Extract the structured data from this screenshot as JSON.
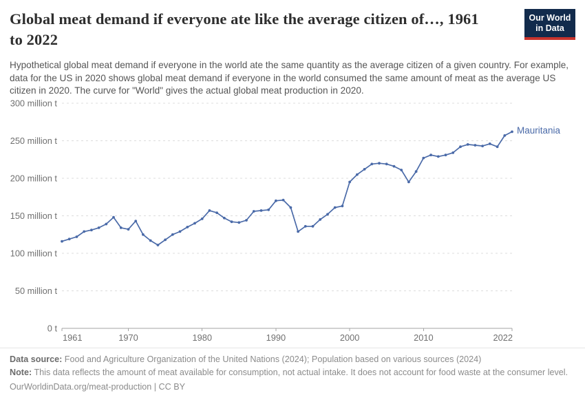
{
  "header": {
    "title_line1": "Global meat demand if everyone ate like the average citizen of…, 1961",
    "title_line2": "to 2022",
    "subtitle": "Hypothetical global meat demand if everyone in the world ate the same quantity as the average citizen of a given country. For example, data for the US in 2020 shows global meat demand if everyone in the world consumed the same amount of meat as the average US citizen in 2020. The curve for \"World\" gives the actual global meat production in 2020.",
    "logo": {
      "line1": "Our World",
      "line2": "in Data",
      "navy": "#122B4C",
      "red": "#C8342D"
    }
  },
  "chart_data": {
    "type": "line",
    "title": "Global meat demand if everyone ate like the average citizen of…, 1961 to 2022",
    "xlabel": "",
    "ylabel": "",
    "unit": "million t",
    "xlim": [
      1961,
      2022
    ],
    "ylim": [
      0,
      300
    ],
    "grid": "dashed horizontal",
    "legend_position": "end-of-line label",
    "x_ticks": [
      1961,
      1970,
      1980,
      1990,
      2000,
      2010,
      2022
    ],
    "y_ticks": [
      {
        "value": 0,
        "label": "0 t"
      },
      {
        "value": 50,
        "label": "50 million t"
      },
      {
        "value": 100,
        "label": "100 million t"
      },
      {
        "value": 150,
        "label": "150 million t"
      },
      {
        "value": 200,
        "label": "200 million t"
      },
      {
        "value": 250,
        "label": "250 million t"
      },
      {
        "value": 300,
        "label": "300 million t"
      }
    ],
    "series": [
      {
        "name": "Mauritania",
        "color": "#4A6AA8",
        "points": [
          [
            1961,
            116
          ],
          [
            1962,
            119
          ],
          [
            1963,
            122
          ],
          [
            1964,
            129
          ],
          [
            1965,
            131
          ],
          [
            1966,
            134
          ],
          [
            1967,
            139
          ],
          [
            1968,
            148
          ],
          [
            1969,
            134
          ],
          [
            1970,
            132
          ],
          [
            1971,
            143
          ],
          [
            1972,
            125
          ],
          [
            1973,
            117
          ],
          [
            1974,
            111
          ],
          [
            1975,
            118
          ],
          [
            1976,
            125
          ],
          [
            1977,
            129
          ],
          [
            1978,
            135
          ],
          [
            1979,
            140
          ],
          [
            1980,
            146
          ],
          [
            1981,
            157
          ],
          [
            1982,
            154
          ],
          [
            1983,
            147
          ],
          [
            1984,
            142
          ],
          [
            1985,
            141
          ],
          [
            1986,
            144
          ],
          [
            1987,
            156
          ],
          [
            1988,
            157
          ],
          [
            1989,
            158
          ],
          [
            1990,
            170
          ],
          [
            1991,
            171
          ],
          [
            1992,
            161
          ],
          [
            1993,
            129
          ],
          [
            1994,
            136
          ],
          [
            1995,
            136
          ],
          [
            1996,
            145
          ],
          [
            1997,
            152
          ],
          [
            1998,
            161
          ],
          [
            1999,
            163
          ],
          [
            2000,
            195
          ],
          [
            2001,
            205
          ],
          [
            2002,
            212
          ],
          [
            2003,
            219
          ],
          [
            2004,
            220
          ],
          [
            2005,
            219
          ],
          [
            2006,
            216
          ],
          [
            2007,
            211
          ],
          [
            2008,
            195
          ],
          [
            2009,
            209
          ],
          [
            2010,
            227
          ],
          [
            2011,
            231
          ],
          [
            2012,
            229
          ],
          [
            2013,
            231
          ],
          [
            2014,
            234
          ],
          [
            2015,
            242
          ],
          [
            2016,
            245
          ],
          [
            2017,
            244
          ],
          [
            2018,
            243
          ],
          [
            2019,
            246
          ],
          [
            2020,
            242
          ],
          [
            2021,
            257
          ],
          [
            2022,
            262
          ]
        ]
      }
    ]
  },
  "footer": {
    "data_source_label": "Data source:",
    "data_source_text": " Food and Agriculture Organization of the United Nations (2024); Population based on various sources (2024)",
    "note_label": "Note:",
    "note_text": " This data reflects the amount of meat available for consumption, not actual intake. It does not account for food waste at the consumer level.",
    "citation_link": "OurWorldinData.org/meat-production",
    "citation_separator": " | ",
    "citation_license": "CC BY"
  }
}
